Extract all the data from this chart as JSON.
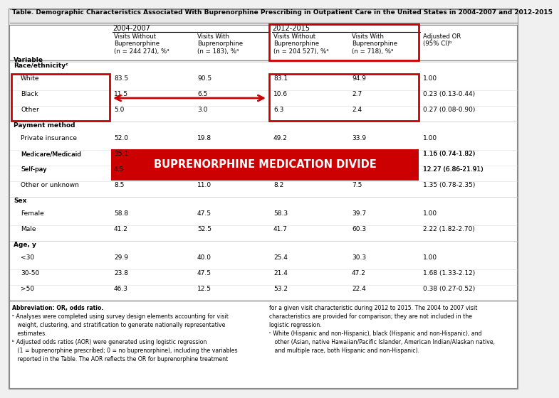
{
  "title": "Table. Demographic Characteristics Associated With Buprenorphine Prescribing in Outpatient Care in the United States in 2004-2007 and 2012-2015",
  "period1": "2004-2007",
  "period2": "2012-2015",
  "sections": [
    {
      "label": "Race/ethnicityᶜ",
      "rows": [
        [
          "White",
          "83.5",
          "90.5",
          "83.1",
          "94.9",
          "1.00"
        ],
        [
          "Black",
          "11.5",
          "6.5",
          "10.6",
          "2.7",
          "0.23 (0.13-0.44)"
        ],
        [
          "Other",
          "5.0",
          "3.0",
          "6.3",
          "2.4",
          "0.27 (0.08-0.90)"
        ]
      ]
    },
    {
      "label": "Payment method",
      "rows": [
        [
          "Private insurance",
          "52.0",
          "19.8",
          "49.2",
          "33.9",
          "1.00"
        ],
        [
          "Medicare/Medicaid",
          "35.1",
          "",
          "",
          "",
          "1.16 (0.74-1.82)"
        ],
        [
          "Self-pay",
          "4.5",
          "",
          "",
          "",
          "12.27 (6.86-21.91)"
        ],
        [
          "Other or unknown",
          "8.5",
          "11.0",
          "8.2",
          "7.5",
          "1.35 (0.78-2.35)"
        ]
      ]
    },
    {
      "label": "Sex",
      "rows": [
        [
          "Female",
          "58.8",
          "47.5",
          "58.3",
          "39.7",
          "1.00"
        ],
        [
          "Male",
          "41.2",
          "52.5",
          "41.7",
          "60.3",
          "2.22 (1.82-2.70)"
        ]
      ]
    },
    {
      "label": "Age, y",
      "rows": [
        [
          "<30",
          "29.9",
          "40.0",
          "25.4",
          "30.3",
          "1.00"
        ],
        [
          "30-50",
          "23.8",
          "47.5",
          "21.4",
          "47.2",
          "1.68 (1.33-2.12)"
        ],
        [
          ">50",
          "46.3",
          "12.5",
          "53.2",
          "22.4",
          "0.38 (0.27-0.52)"
        ]
      ]
    }
  ],
  "col_headers_line2": [
    "Visits Without\nBuprenorphine\n(n = 244 274), %ᵃ",
    "Visits With\nBuprenorphine\n(n = 183), %ᵃ",
    "Visits Without\nBuprenorphine\n(n = 204 527), %ᵃ",
    "Visits With\nBuprenorphine\n(n = 718), %ᵃ",
    "Adjusted OR\n(95% CI)ᵇ"
  ],
  "footnotes_left": [
    [
      "bold",
      "Abbreviation: OR, odds ratio."
    ],
    [
      "normal",
      "ᵃ Analyses were completed using survey design elements accounting for visit"
    ],
    [
      "normal",
      "   weight, clustering, and stratification to generate nationally representative"
    ],
    [
      "normal",
      "   estimates."
    ],
    [
      "normal",
      "ᵇ Adjusted odds ratios (AOR) were generated using logistic regression"
    ],
    [
      "normal",
      "   (1 = buprenorphine prescribed; 0 = no buprenorphine), including the variables"
    ],
    [
      "normal",
      "   reported in the Table. The AOR reflects the OR for buprenorphine treatment"
    ]
  ],
  "footnotes_right": [
    "for a given visit characteristic during 2012 to 2015. The 2004 to 2007 visit",
    "characteristics are provided for comparison; they are not included in the",
    "logistic regression.",
    "ᶜ White (Hispanic and non-Hispanic), black (Hispanic and non-Hispanic), and",
    "   other (Asian, native Hawaiian/Pacific Islander, American Indian/Alaskan native,",
    "   and multiple race, both Hispanic and non-Hispanic)."
  ],
  "banner_text": "BUPRENORPHINE MEDICATION DIVIDE",
  "red_color": "#cc0000",
  "banner_bg": "#cc0000",
  "banner_text_color": "#ffffff",
  "white": "#ffffff",
  "light_gray": "#f0f0f0",
  "mid_gray": "#888888",
  "row_line": "#cccccc"
}
